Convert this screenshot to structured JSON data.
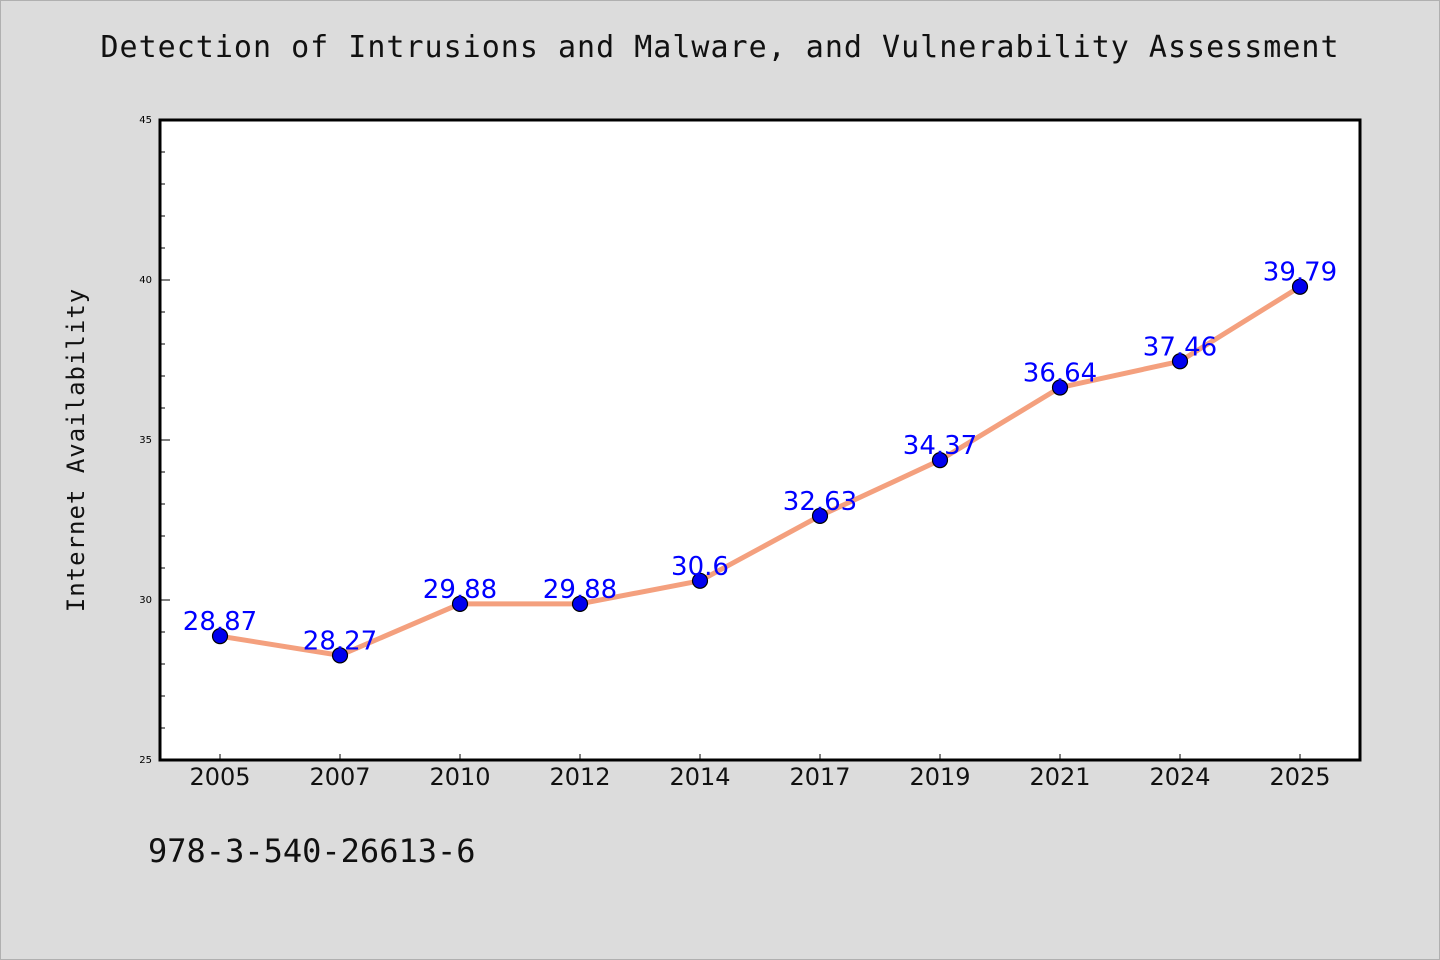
{
  "chart_data": {
    "type": "line",
    "title": "Detection of Intrusions and Malware, and Vulnerability Assessment",
    "xlabel": "",
    "ylabel": "Internet Availability",
    "categories": [
      "2005",
      "2007",
      "2010",
      "2012",
      "2014",
      "2017",
      "2019",
      "2021",
      "2024",
      "2025"
    ],
    "values": [
      28.87,
      28.27,
      29.88,
      29.88,
      30.6,
      32.63,
      34.37,
      36.64,
      37.46,
      39.79
    ],
    "data_labels": [
      "28.87",
      "28.27",
      "29.88",
      "29.88",
      "30.6",
      "32.63",
      "34.37",
      "36.64",
      "37.46",
      "39.79"
    ],
    "ylim": [
      25,
      45
    ],
    "yticks": [
      25,
      30,
      35,
      40,
      45
    ],
    "ytick_labels": [
      "25",
      "30",
      "35",
      "40",
      "45"
    ],
    "grid": false,
    "legend": "none",
    "colors": {
      "line": "#f4a07e",
      "marker": "#0000ee",
      "data_label": "#0000ff",
      "background": "#dcdcdc",
      "plot_background": "#ffffff"
    }
  },
  "footer": {
    "isbn": "978-3-540-26613-6"
  }
}
